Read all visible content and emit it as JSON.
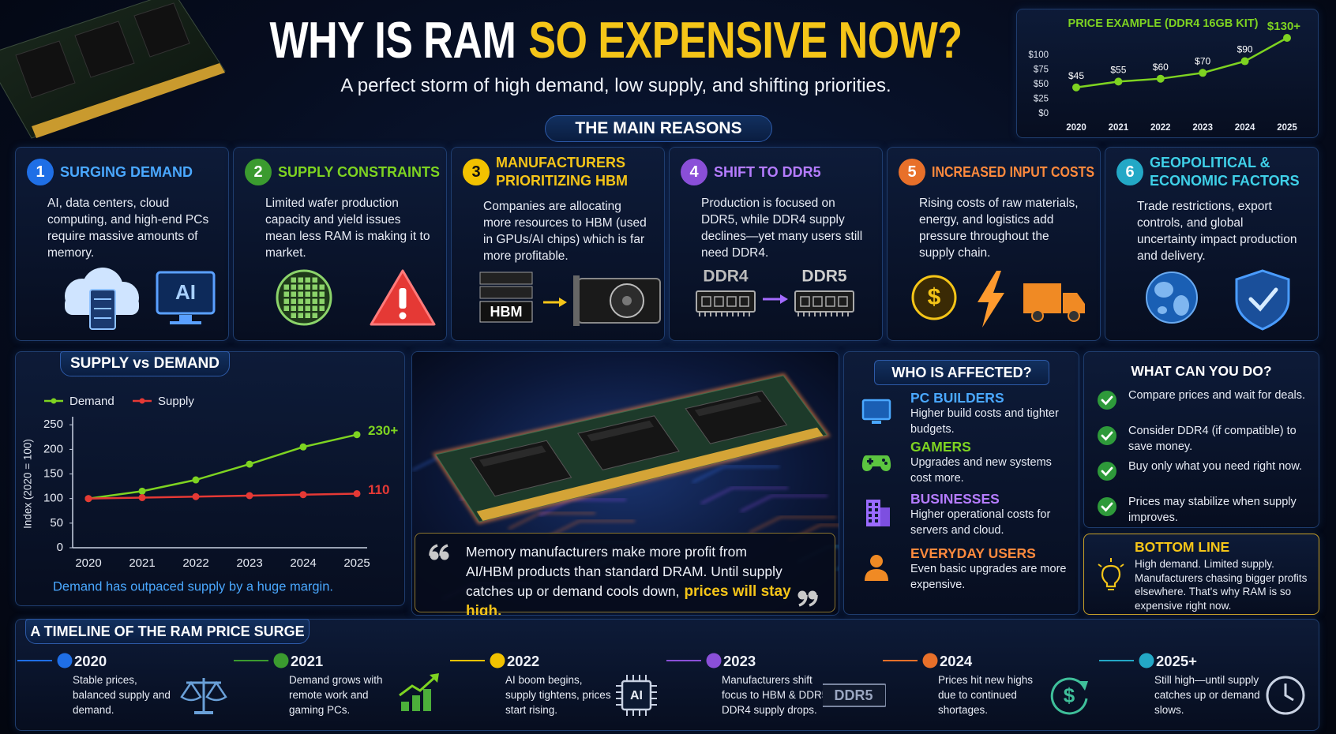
{
  "header": {
    "title_white": "WHY IS RAM",
    "title_yellow": "SO EXPENSIVE NOW?",
    "subtitle": "A perfect storm of high demand, low supply, and shifting priorities."
  },
  "reasons": {
    "heading": "THE MAIN REASONS",
    "items": [
      {
        "number": 1,
        "title": [
          "SURGING DEMAND"
        ],
        "body": "AI, data centers, cloud computing, and high-end PCs require massive amounts of memory.",
        "icon_labels": [
          "AI"
        ]
      },
      {
        "number": 2,
        "title": [
          "SUPPLY CONSTRAINTS"
        ],
        "body": "Limited wafer production capacity and yield issues mean less RAM is making it to market.",
        "icon_labels": []
      },
      {
        "number": 3,
        "title": [
          "MANUFACTURERS",
          "PRIORITIZING HBM"
        ],
        "body": "Companies are allocating more resources to HBM (used in GPUs/AI chips) which is far more profitable.",
        "icon_labels": [
          "HBM"
        ]
      },
      {
        "number": 4,
        "title": [
          "SHIFT TO DDR5"
        ],
        "body": "Production is focused on DDR5, while DDR4 supply declines—yet many users still need DDR4.",
        "icon_labels": [
          "DDR4",
          "DDR5"
        ]
      },
      {
        "number": 5,
        "title": [
          "INCREASED INPUT COSTS"
        ],
        "body": "Rising costs of raw materials, energy, and logistics add pressure throughout the supply chain.",
        "icon_labels": [
          "$"
        ]
      },
      {
        "number": 6,
        "title": [
          "GEOPOLITICAL &",
          "ECONOMIC FACTORS"
        ],
        "body": "Trade restrictions, export controls, and global uncertainty impact production and delivery.",
        "icon_labels": []
      }
    ]
  },
  "chart_data": [
    {
      "type": "line",
      "title": "PRICE EXAMPLE (DDR4 16GB KIT)",
      "categories": [
        "2020",
        "2021",
        "2022",
        "2023",
        "2024",
        "2025"
      ],
      "values": [
        45,
        55,
        60,
        70,
        90,
        130
      ],
      "value_labels": [
        "$45",
        "$55",
        "$60",
        "$70",
        "$90",
        "$130+"
      ],
      "color": "#7ed321",
      "ylim": [
        0,
        130
      ],
      "yticks": [
        {
          "value": 0,
          "label": "$0"
        },
        {
          "value": 25,
          "label": "$25"
        },
        {
          "value": 50,
          "label": "$50"
        },
        {
          "value": 75,
          "label": "$75"
        },
        {
          "value": 100,
          "label": "$100"
        }
      ],
      "grid": false
    },
    {
      "type": "line",
      "title": "SUPPLY vs DEMAND",
      "ylabel": "Index (2020 = 100)",
      "categories": [
        "2020",
        "2021",
        "2022",
        "2023",
        "2024",
        "2025"
      ],
      "series": [
        {
          "name": "Demand",
          "color": "#7ed321",
          "values": [
            100,
            115,
            138,
            170,
            205,
            230
          ],
          "value_labels": [
            null,
            null,
            null,
            null,
            null,
            "230+"
          ]
        },
        {
          "name": "Supply",
          "color": "#e53935",
          "values": [
            100,
            102,
            104,
            106,
            108,
            110
          ],
          "value_labels": [
            null,
            null,
            null,
            null,
            null,
            "110"
          ]
        }
      ],
      "ylim": [
        0,
        260
      ],
      "yticks": [
        0,
        50,
        100,
        150,
        200,
        250
      ],
      "grid": false,
      "legend": "top-left",
      "caption": "Demand has outpaced supply by a huge margin."
    }
  ],
  "quote": {
    "text": "Memory manufacturers make more profit from AI/HBM products than standard DRAM. Until supply catches up or demand cools down,",
    "highlight": "prices will stay high."
  },
  "affected": {
    "heading": "WHO IS AFFECTED?",
    "items": [
      {
        "title": "PC BUILDERS",
        "body": "Higher build costs and tighter budgets."
      },
      {
        "title": "GAMERS",
        "body": "Upgrades and new systems cost more."
      },
      {
        "title": "BUSINESSES",
        "body": "Higher operational costs for servers and cloud."
      },
      {
        "title": "EVERYDAY USERS",
        "body": "Even basic upgrades are more expensive."
      }
    ]
  },
  "actions": {
    "heading": "WHAT CAN YOU DO?",
    "items": [
      "Compare prices and wait for deals.",
      "Consider DDR4 (if compatible) to save money.",
      "Buy only what you need right now.",
      "Prices may stabilize when supply improves."
    ]
  },
  "bottom_line": {
    "heading": "BOTTOM LINE",
    "body": "High demand. Limited supply. Manufacturers chasing bigger profits elsewhere. That's why RAM is so expensive right now."
  },
  "timeline": {
    "heading": "A TIMELINE OF THE RAM PRICE SURGE",
    "items": [
      {
        "year": "2020",
        "body": "Stable prices, balanced supply and demand.",
        "icon_labels": []
      },
      {
        "year": "2021",
        "body": "Demand grows with remote work and gaming PCs.",
        "icon_labels": []
      },
      {
        "year": "2022",
        "body": "AI boom begins, supply tightens, prices start rising.",
        "icon_labels": [
          "AI"
        ]
      },
      {
        "year": "2023",
        "body": "Manufacturers shift focus to HBM & DDR5, DDR4 supply drops.",
        "icon_labels": [
          "DDR5"
        ]
      },
      {
        "year": "2024",
        "body": "Prices hit new highs due to continued shortages.",
        "icon_labels": [
          "$"
        ]
      },
      {
        "year": "2025+",
        "body": "Still high—until supply catches up or demand slows.",
        "icon_labels": []
      }
    ]
  }
}
